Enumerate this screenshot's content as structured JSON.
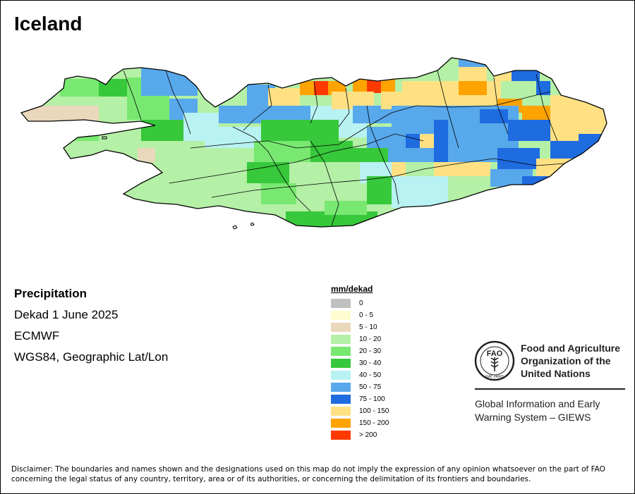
{
  "title": "Iceland",
  "info": {
    "heading": "Precipitation",
    "period": "Dekad 1 June 2025",
    "source": "ECMWF",
    "projection": "WGS84, Geographic Lat/Lon"
  },
  "legend": {
    "unit": "mm/dekad",
    "classes": [
      {
        "label": "0",
        "color": "#c0c0c0"
      },
      {
        "label": "0 - 5",
        "color": "#fffdd0"
      },
      {
        "label": "5 - 10",
        "color": "#ead8bc"
      },
      {
        "label": "10 - 20",
        "color": "#b4f0a6"
      },
      {
        "label": "20 - 30",
        "color": "#78e871"
      },
      {
        "label": "30 - 40",
        "color": "#37c83b"
      },
      {
        "label": "40 - 50",
        "color": "#b8f2f2"
      },
      {
        "label": "50 - 75",
        "color": "#58a8ec"
      },
      {
        "label": "75 - 100",
        "color": "#1f6be0"
      },
      {
        "label": "100 - 150",
        "color": "#ffe184"
      },
      {
        "label": "150 - 200",
        "color": "#ffa300"
      },
      {
        "label": "> 200",
        "color": "#ff3a00"
      }
    ]
  },
  "organization": {
    "name_lines": [
      "Food and Agriculture",
      "Organization of the",
      "United Nations"
    ],
    "logo_text": "FAO",
    "logo_motto": "FIAT PANIS",
    "system_lines": [
      "Global Information and Early",
      "Warning System – GIEWS"
    ]
  },
  "disclaimer": "Disclaimer: The boundaries and names shown and the designations used on this map do not imply the expression of any opinion whatsoever on the part of FAO concerning the legal status of any country, territory, area or of its authorities, or concerning the delimitation of its frontiers and boundaries.",
  "icons": {
    "logo": "fao-logo-icon"
  }
}
